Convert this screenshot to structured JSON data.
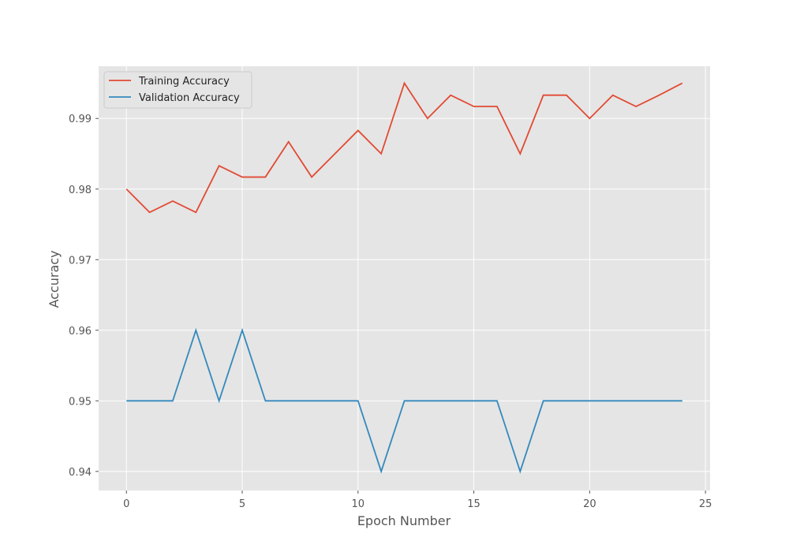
{
  "chart_data": {
    "type": "line",
    "title": "",
    "xlabel": "Epoch Number",
    "ylabel": "Accuracy",
    "xlim": [
      -1.2,
      25.2
    ],
    "ylim": [
      0.9373,
      0.9974
    ],
    "xticks": [
      0,
      5,
      10,
      15,
      20,
      25
    ],
    "yticks": [
      0.94,
      0.95,
      0.96,
      0.97,
      0.98,
      0.99
    ],
    "grid": true,
    "legend_position": "top-left",
    "x": [
      0,
      1,
      2,
      3,
      4,
      5,
      6,
      7,
      8,
      9,
      10,
      11,
      12,
      13,
      14,
      15,
      16,
      17,
      18,
      19,
      20,
      21,
      22,
      23,
      24
    ],
    "series": [
      {
        "name": "Training Accuracy",
        "color": "#e24a33",
        "values": [
          0.98,
          0.9767,
          0.9783,
          0.9767,
          0.9833,
          0.9817,
          0.9817,
          0.9867,
          0.9817,
          0.985,
          0.9883,
          0.985,
          0.995,
          0.99,
          0.9933,
          0.9917,
          0.9917,
          0.985,
          0.9933,
          0.9933,
          0.99,
          0.9933,
          0.9917,
          0.9933,
          0.995
        ]
      },
      {
        "name": "Validation Accuracy",
        "color": "#348abd",
        "values": [
          0.95,
          0.95,
          0.95,
          0.96,
          0.95,
          0.96,
          0.95,
          0.95,
          0.95,
          0.95,
          0.95,
          0.94,
          0.95,
          0.95,
          0.95,
          0.95,
          0.95,
          0.94,
          0.95,
          0.95,
          0.95,
          0.95,
          0.95,
          0.95,
          0.95
        ]
      }
    ]
  }
}
